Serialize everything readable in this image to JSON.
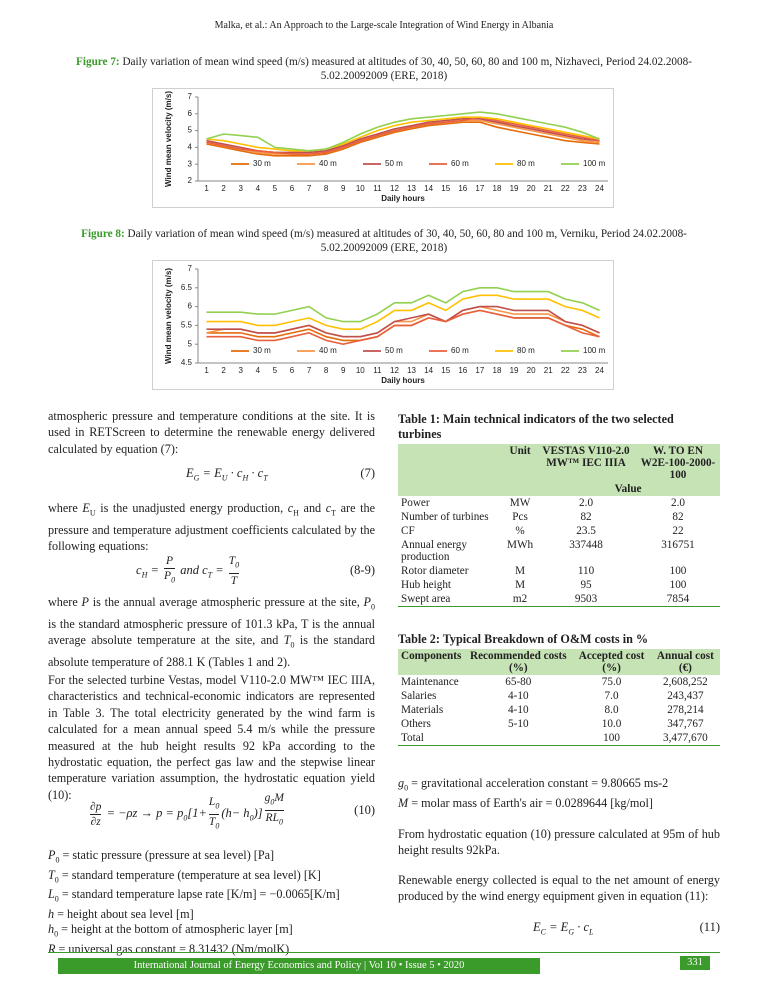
{
  "header": "Malka, et al.: An Approach to the Large-scale Integration of Wind Energy in Albania",
  "figures": [
    {
      "label": "Figure 7:",
      "caption": "Daily variation of mean wind speed (m/s) measured at altitudes of 30, 40, 50, 60, 80 and 100 m, Nizhaveci, Period 24.02.2008-5.02.20092009 (ERE, 2018)"
    },
    {
      "label": "Figure 8:",
      "caption": "Daily variation of mean wind speed (m/s) measured at altitudes of 30, 40, 50, 60, 80 and 100 m, Verniku, Period 24.02.2008-5.02.20092009 (ERE, 2018)"
    }
  ],
  "chart_data": [
    {
      "type": "line",
      "ylabel": "Wind mean velocity (m/s)",
      "xlabel": "Daily hours",
      "categories": [
        "1",
        "2",
        "3",
        "4",
        "5",
        "6",
        "7",
        "8",
        "9",
        "10",
        "11",
        "12",
        "13",
        "14",
        "15",
        "16",
        "17",
        "18",
        "19",
        "20",
        "21",
        "22",
        "23",
        "24"
      ],
      "ylim": [
        2,
        7
      ],
      "yticks": [
        2,
        3,
        4,
        5,
        6,
        7
      ],
      "series": [
        {
          "name": "30 m",
          "color": "#e46c0a",
          "values": [
            4.2,
            4.0,
            3.8,
            3.6,
            3.5,
            3.5,
            3.5,
            3.6,
            3.9,
            4.3,
            4.6,
            4.9,
            5.1,
            5.3,
            5.4,
            5.5,
            5.5,
            5.2,
            5.0,
            4.8,
            4.6,
            4.4,
            4.3,
            4.2
          ]
        },
        {
          "name": "40 m",
          "color": "#f79646",
          "values": [
            4.3,
            4.1,
            3.9,
            3.7,
            3.6,
            3.6,
            3.6,
            3.7,
            4.0,
            4.4,
            4.7,
            5.0,
            5.2,
            5.4,
            5.5,
            5.6,
            5.6,
            5.4,
            5.2,
            5.0,
            4.8,
            4.6,
            4.4,
            4.3
          ]
        },
        {
          "name": "50 m",
          "color": "#c0504d",
          "values": [
            4.4,
            4.2,
            4.0,
            3.8,
            3.7,
            3.7,
            3.7,
            3.8,
            4.1,
            4.5,
            4.8,
            5.1,
            5.3,
            5.5,
            5.6,
            5.7,
            5.7,
            5.5,
            5.3,
            5.1,
            4.9,
            4.7,
            4.5,
            4.4
          ]
        },
        {
          "name": "60 m",
          "color": "#e8603c",
          "values": [
            4.3,
            4.1,
            3.9,
            3.8,
            3.7,
            3.6,
            3.6,
            3.7,
            4.0,
            4.4,
            4.7,
            5.0,
            5.2,
            5.4,
            5.5,
            5.6,
            5.8,
            5.6,
            5.4,
            5.2,
            5.0,
            4.8,
            4.6,
            4.4
          ]
        },
        {
          "name": "80 m",
          "color": "#ffc000",
          "values": [
            4.5,
            4.4,
            4.2,
            4.0,
            3.9,
            3.8,
            3.8,
            3.9,
            4.2,
            4.6,
            5.0,
            5.3,
            5.5,
            5.6,
            5.7,
            5.8,
            5.8,
            5.7,
            5.5,
            5.3,
            5.1,
            4.9,
            4.7,
            4.5
          ]
        },
        {
          "name": "100 m",
          "color": "#92d050",
          "values": [
            4.5,
            4.8,
            4.7,
            4.6,
            4.0,
            3.9,
            3.8,
            3.9,
            4.3,
            4.8,
            5.2,
            5.5,
            5.7,
            5.8,
            5.9,
            6.0,
            6.1,
            6.0,
            5.8,
            5.6,
            5.4,
            5.2,
            4.9,
            4.5
          ]
        }
      ]
    },
    {
      "type": "line",
      "ylabel": "Wind mean velocity (m/s)",
      "xlabel": "Daily hours",
      "categories": [
        "1",
        "2",
        "3",
        "4",
        "5",
        "6",
        "7",
        "8",
        "9",
        "10",
        "11",
        "12",
        "13",
        "14",
        "15",
        "16",
        "17",
        "18",
        "19",
        "20",
        "21",
        "22",
        "23",
        "24"
      ],
      "ylim": [
        4.5,
        7
      ],
      "yticks": [
        4.5,
        5,
        5.5,
        6,
        6.5,
        7
      ],
      "series": [
        {
          "name": "30 m",
          "color": "#e46c0a",
          "values": [
            5.3,
            5.3,
            5.3,
            5.2,
            5.2,
            5.3,
            5.4,
            5.2,
            5.1,
            5.1,
            5.2,
            5.5,
            5.5,
            5.7,
            5.6,
            5.8,
            5.9,
            5.8,
            5.7,
            5.7,
            5.7,
            5.5,
            5.4,
            5.2
          ]
        },
        {
          "name": "40 m",
          "color": "#f79646",
          "values": [
            5.3,
            5.4,
            5.4,
            5.3,
            5.3,
            5.4,
            5.5,
            5.3,
            5.2,
            5.2,
            5.3,
            5.6,
            5.6,
            5.8,
            5.6,
            5.9,
            6.0,
            5.9,
            5.8,
            5.8,
            5.8,
            5.6,
            5.5,
            5.3
          ]
        },
        {
          "name": "50 m",
          "color": "#c0504d",
          "values": [
            5.4,
            5.4,
            5.4,
            5.3,
            5.3,
            5.4,
            5.5,
            5.3,
            5.2,
            5.2,
            5.3,
            5.6,
            5.7,
            5.8,
            5.6,
            5.9,
            6.0,
            6.0,
            5.9,
            5.9,
            5.9,
            5.6,
            5.5,
            5.3
          ]
        },
        {
          "name": "60 m",
          "color": "#e8603c",
          "values": [
            5.2,
            5.2,
            5.2,
            5.1,
            5.1,
            5.2,
            5.3,
            5.1,
            5.0,
            5.1,
            5.2,
            5.5,
            5.5,
            5.7,
            5.6,
            5.8,
            5.9,
            5.8,
            5.7,
            5.7,
            5.7,
            5.5,
            5.3,
            5.2
          ]
        },
        {
          "name": "80 m",
          "color": "#ffc000",
          "values": [
            5.6,
            5.6,
            5.6,
            5.5,
            5.5,
            5.6,
            5.7,
            5.5,
            5.4,
            5.4,
            5.6,
            5.9,
            5.9,
            6.1,
            5.9,
            6.2,
            6.3,
            6.3,
            6.2,
            6.2,
            6.2,
            6.0,
            5.9,
            5.7
          ]
        },
        {
          "name": "100 m",
          "color": "#92d050",
          "values": [
            5.85,
            5.85,
            5.85,
            5.8,
            5.8,
            5.9,
            6.0,
            5.7,
            5.6,
            5.6,
            5.8,
            6.1,
            6.1,
            6.3,
            6.1,
            6.4,
            6.5,
            6.5,
            6.4,
            6.4,
            6.4,
            6.2,
            6.1,
            5.9
          ]
        }
      ]
    }
  ],
  "left": {
    "p1": [
      "atmospheric pressure and temperature conditions at the site. It is used in RETScreen to determine the renewable energy delivered calculated by equation (7):"
    ],
    "eq7": {
      "body": [
        "E",
        {
          "sub": "G"
        },
        " = E",
        {
          "sub": "U"
        },
        " · c",
        {
          "sub": "H"
        },
        " · c",
        {
          "sub": "T"
        }
      ],
      "number": "(7)"
    },
    "p2": [
      "where ",
      {
        "i": "E"
      },
      {
        "sub": "U"
      },
      " is the unadjusted energy production, ",
      {
        "i": "c"
      },
      {
        "sub": "H"
      },
      " and ",
      {
        "i": "c"
      },
      {
        "sub": "T"
      },
      " are the pressure and temperature adjustment coefficients calculated by the following equations:"
    ],
    "eq89": {
      "body": [
        "c",
        {
          "sub": "H"
        },
        " = ",
        {
          "frac": [
            [
              "P"
            ],
            [
              "P",
              {
                "sub": "0"
              }
            ]
          ]
        },
        "  and  c",
        {
          "sub": "T"
        },
        " = ",
        {
          "frac": [
            [
              "T",
              {
                "sub": "0"
              }
            ],
            [
              "T"
            ]
          ]
        }
      ],
      "number": "(8-9)"
    },
    "p3": [
      "where ",
      {
        "i": "P"
      },
      " is the annual average atmospheric pressure at the site, ",
      {
        "i": "P"
      },
      {
        "sub": "0"
      },
      " is the standard atmospheric pressure of 101.3 kPa, T is the annual average absolute temperature at the site, and ",
      {
        "i": "T"
      },
      {
        "sub": "0"
      },
      " is the standard absolute temperature of 288.1 K (Tables 1 and 2)."
    ],
    "p4": [
      "For the selected turbine Vestas, model V110-2.0 MW™ IEC IIIA, characteristics and technical-economic indicators are represented in Table 3. The total electricity generated by the wind farm is calculated for a mean annual speed 5.4 m/s while the pressure measured at the hub height results 92 kPa according to the hydrostatic equation, the perfect gas law and the stepwise linear temperature variation assumption, the hydrostatic equation yield (10):"
    ],
    "eq10": {
      "body": [
        {
          "frac": [
            [
              "∂p"
            ],
            [
              "∂z"
            ]
          ]
        },
        " = −ρz → p = p",
        {
          "sub": "0"
        },
        "[1+",
        {
          "frac": [
            [
              "L",
              {
                "sub": "0"
              }
            ],
            [
              "T",
              {
                "sub": "0"
              }
            ]
          ]
        },
        "(h− h",
        {
          "sub": "0"
        },
        ")]",
        {
          "sup": [
            {
              "frac": [
                [
                  "g",
                  {
                    "sub": "0"
                  },
                  "M"
                ],
                [
                  "RL",
                  {
                    "sub": "0"
                  }
                ]
              ]
            }
          ]
        }
      ],
      "number": "(10)"
    },
    "defs": [
      [
        {
          "i": "P"
        },
        {
          "sub": "0"
        },
        " = static pressure (pressure at sea level) [Pa]"
      ],
      [
        {
          "i": "T"
        },
        {
          "sub": "0"
        },
        " = standard temperature (temperature at sea level) [K]"
      ],
      [
        {
          "i": "L"
        },
        {
          "sub": "0"
        },
        " = standard temperature lapse rate [K/m] = −0.0065[K/m]"
      ],
      [
        {
          "i": "h"
        },
        " = height about sea level [m]"
      ],
      [
        {
          "i": "h"
        },
        {
          "sub": "0"
        },
        " = height at the bottom of atmospheric layer [m]"
      ],
      [
        {
          "i": "R"
        },
        " = universal gas constant = 8.31432 (Nm/molK)"
      ]
    ]
  },
  "table1": {
    "title": "Table 1: Main technical indicators of the two selected turbines",
    "columns": [
      "Unit",
      "VESTAS V110-2.0 MW™ IEC IIIA",
      "W. TO EN W2E-100-2000-100"
    ],
    "subheader": "Value",
    "rows": [
      [
        "Power",
        "MW",
        "2.0",
        "2.0"
      ],
      [
        "Number of turbines",
        "Pcs",
        "82",
        "82"
      ],
      [
        "CF",
        "%",
        "23.5",
        "22"
      ],
      [
        "Annual energy production",
        "MWh",
        "337448",
        "316751"
      ],
      [
        "Rotor diameter",
        "M",
        "110",
        "100"
      ],
      [
        "Hub height",
        "M",
        "95",
        "100"
      ],
      [
        "Swept area",
        "m2",
        "9503",
        "7854"
      ]
    ]
  },
  "table2": {
    "title": "Table 2: Typical Breakdown of O&M costs in %",
    "columns": [
      "Components",
      "Recommended costs (%)",
      "Accepted cost (%)",
      "Annual cost (€)"
    ],
    "rows": [
      [
        "Maintenance",
        "65-80",
        "75.0",
        "2,608,252"
      ],
      [
        "Salaries",
        "4-10",
        "7.0",
        "243,437"
      ],
      [
        "Materials",
        "4-10",
        "8.0",
        "278,214"
      ],
      [
        "Others",
        "5-10",
        "10.0",
        "347,767"
      ],
      [
        "Total",
        null,
        "100",
        "3,477,670"
      ]
    ]
  },
  "right": {
    "defs": [
      [
        {
          "i": "g"
        },
        {
          "sub": "0"
        },
        " = gravitational acceleration constant = 9.80665 ms-2"
      ],
      [
        {
          "i": "M"
        },
        " = molar mass of Earth's air = 0.0289644 [kg/mol]"
      ]
    ],
    "p1": [
      "From hydrostatic equation (10) pressure calculated at 95m of hub height results 92kPa."
    ],
    "p2": [
      "Renewable energy collected is equal to the net amount of energy produced by the wind energy equipment given in equation (11):"
    ],
    "eq11": {
      "body": [
        "E",
        {
          "sub": "C"
        },
        " = E",
        {
          "sub": "G"
        },
        " · c",
        {
          "sub": "L"
        }
      ],
      "number": "(11)"
    }
  },
  "footer": {
    "journal": "International Journal of Energy Economics and Policy | Vol 10 • Issue 5 • 2020",
    "page": "331"
  }
}
